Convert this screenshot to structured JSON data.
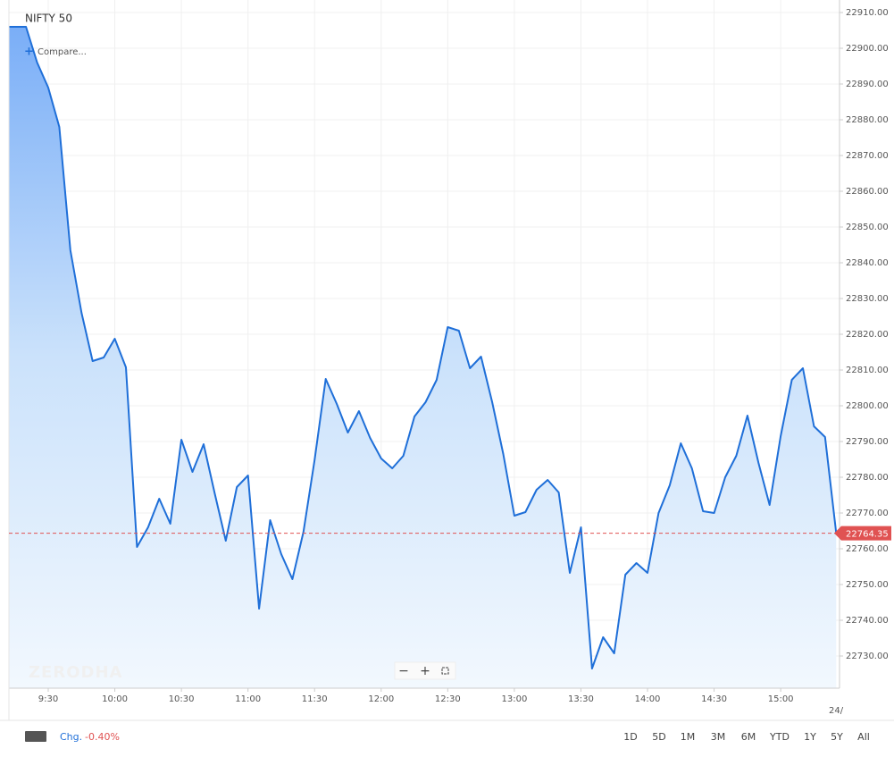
{
  "chart_data": {
    "type": "line",
    "title": "NIFTY 50",
    "x": [
      555,
      560,
      565,
      570,
      575,
      580,
      585,
      590,
      595,
      600,
      605,
      610,
      615,
      620,
      625,
      630,
      635,
      640,
      645,
      650,
      655,
      660,
      665,
      670,
      675,
      680,
      685,
      690,
      695,
      700,
      705,
      710,
      715,
      720,
      725,
      730,
      735,
      740,
      745,
      750,
      755,
      760,
      765,
      770,
      775,
      780,
      785,
      790,
      795,
      800,
      805,
      810,
      815,
      820,
      825,
      830,
      835,
      840,
      845,
      850,
      855,
      860,
      865,
      870,
      875,
      880,
      885,
      890,
      895,
      900,
      905,
      910,
      915,
      920,
      925
    ],
    "series": [
      {
        "name": "NIFTY 50",
        "color": "#1f6fd8",
        "values": [
          22906,
          22906,
          22896,
          22889,
          22878,
          22843.5,
          22826,
          22812.5,
          22813.5,
          22818.75,
          22810.75,
          22760.5,
          22766,
          22774,
          22767,
          22790.5,
          22781.5,
          22789.25,
          22775.5,
          22762.25,
          22777.25,
          22780.5,
          22743.25,
          22768,
          22758.5,
          22751.5,
          22764.75,
          22784.75,
          22807.5,
          22800.5,
          22792.5,
          22798.5,
          22791,
          22785.25,
          22782.5,
          22786,
          22797,
          22801,
          22807.25,
          22822,
          22821,
          22810.5,
          22813.75,
          22801,
          22786.5,
          22769.25,
          22770.25,
          22776.5,
          22779.25,
          22775.75,
          22753.25,
          22766,
          22726.5,
          22735.25,
          22730.75,
          22752.75,
          22756,
          22753.25,
          22770,
          22777.75,
          22789.5,
          22782.5,
          22770.5,
          22770,
          22780,
          22786,
          22797.25,
          22784,
          22772.25,
          22791.5,
          22807.25,
          22810.5,
          22794.25,
          22791.25,
          22764.35
        ]
      }
    ],
    "last_price": 22764.35,
    "xlim": [
      552.3,
      926.5
    ],
    "xticks": [
      {
        "value": 570,
        "label": "9:30"
      },
      {
        "value": 600,
        "label": "10:00"
      },
      {
        "value": 630,
        "label": "10:30"
      },
      {
        "value": 660,
        "label": "11:00"
      },
      {
        "value": 690,
        "label": "11:30"
      },
      {
        "value": 720,
        "label": "12:00"
      },
      {
        "value": 750,
        "label": "12:30"
      },
      {
        "value": 780,
        "label": "13:00"
      },
      {
        "value": 810,
        "label": "13:30"
      },
      {
        "value": 840,
        "label": "14:00"
      },
      {
        "value": 870,
        "label": "14:30"
      },
      {
        "value": 900,
        "label": "15:00"
      }
    ],
    "ylim": [
      22721,
      22913.5
    ],
    "yticks": [
      {
        "value": 22730,
        "label": "22730.00"
      },
      {
        "value": 22740,
        "label": "22740.00"
      },
      {
        "value": 22750,
        "label": "22750.00"
      },
      {
        "value": 22760,
        "label": "22760.00"
      },
      {
        "value": 22770,
        "label": "22770.00"
      },
      {
        "value": 22780,
        "label": "22780.00"
      },
      {
        "value": 22790,
        "label": "22790.00"
      },
      {
        "value": 22800,
        "label": "22800.00"
      },
      {
        "value": 22810,
        "label": "22810.00"
      },
      {
        "value": 22820,
        "label": "22820.00"
      },
      {
        "value": 22830,
        "label": "22830.00"
      },
      {
        "value": 22840,
        "label": "22840.00"
      },
      {
        "value": 22850,
        "label": "22850.00"
      },
      {
        "value": 22860,
        "label": "22860.00"
      },
      {
        "value": 22870,
        "label": "22870.00"
      },
      {
        "value": 22880,
        "label": "22880.00"
      },
      {
        "value": 22890,
        "label": "22890.00"
      },
      {
        "value": 22900,
        "label": "22900.00"
      },
      {
        "value": 22910,
        "label": "22910.00"
      }
    ],
    "grid": true,
    "date_stub": "24/"
  },
  "ui": {
    "compare": "Compare...",
    "watermark": "ZERODHA",
    "change_label": "Chg.",
    "change_value": "-0.40%",
    "ranges": [
      "1D",
      "5D",
      "1M",
      "3M",
      "6M",
      "YTD",
      "1Y",
      "5Y",
      "All"
    ]
  }
}
